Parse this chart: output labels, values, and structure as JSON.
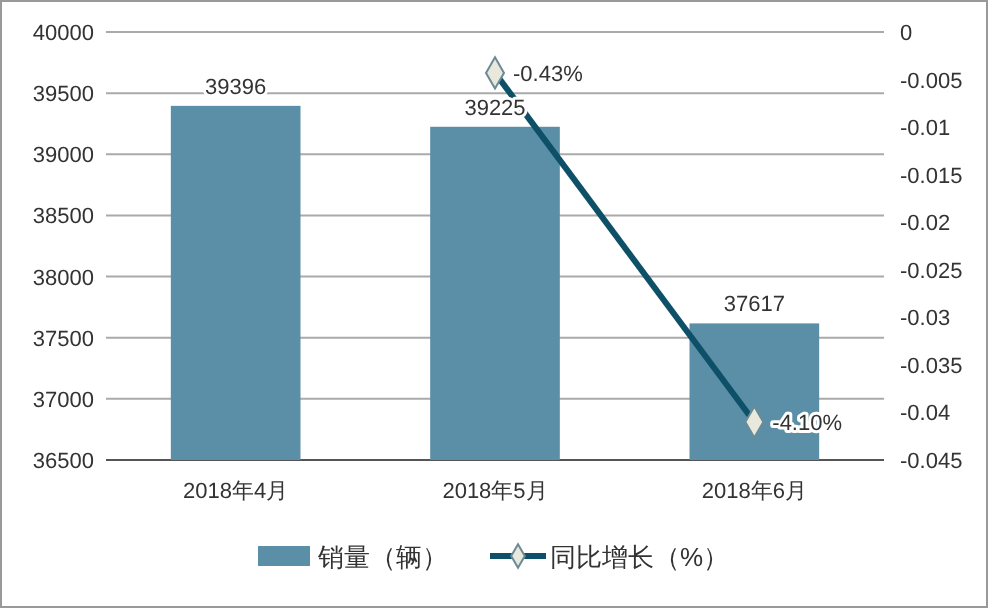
{
  "chart_data": {
    "type": "bar",
    "categories": [
      "2018年4月",
      "2018年5月",
      "2018年6月"
    ],
    "series": [
      {
        "name": "销量（辆）",
        "color": "#5b8fa8",
        "values": [
          39396,
          39225,
          37617
        ],
        "data_labels": true
      },
      {
        "name": "同比增长（%）",
        "type": "line",
        "axis": "y2",
        "color": "#0e5068",
        "marker": "diamond",
        "values": [
          null,
          -0.0043,
          -0.041
        ],
        "value_labels": [
          null,
          "-0.43%",
          "-4.10%"
        ]
      }
    ],
    "ylim": [
      36500,
      40000
    ],
    "yticks": [
      36500,
      37000,
      37500,
      38000,
      38500,
      39000,
      39500,
      40000
    ],
    "y2lim": [
      -0.045,
      0
    ],
    "y2ticks": [
      -0.045,
      -0.04,
      -0.035,
      -0.03,
      -0.025,
      -0.02,
      -0.015,
      -0.01,
      -0.005,
      0
    ],
    "grid": "y",
    "legend": "bottom"
  }
}
